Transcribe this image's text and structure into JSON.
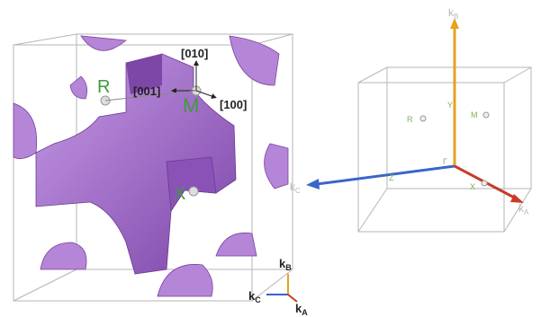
{
  "left_panel": {
    "points": [
      "R",
      "M",
      "X"
    ],
    "directions": [
      "[010]",
      "[001]",
      "[100]"
    ],
    "axes": {
      "kB": {
        "main": "k",
        "sub": "B"
      },
      "kC": {
        "main": "k",
        "sub": "C"
      },
      "kA": {
        "main": "k",
        "sub": "A"
      }
    }
  },
  "right_panel": {
    "points": [
      "R",
      "M",
      "X",
      "Y",
      "Γ",
      "Z"
    ],
    "axes": {
      "kB": {
        "main": "k",
        "sub": "B"
      },
      "kC": {
        "main": "k",
        "sub": "C"
      },
      "kA": {
        "main": "k",
        "sub": "A"
      }
    }
  }
}
